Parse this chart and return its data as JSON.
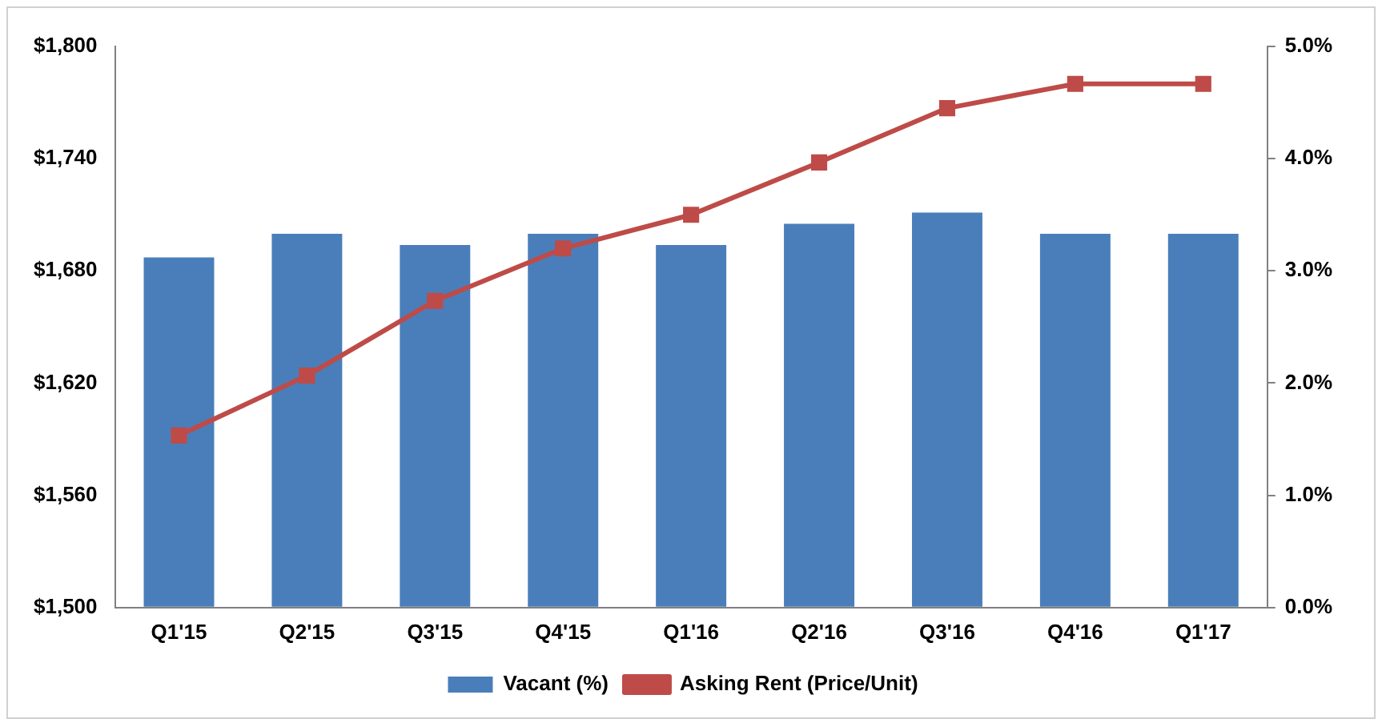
{
  "chart_data": {
    "type": "bar",
    "categories": [
      "Q1'15",
      "Q2'15",
      "Q3'15",
      "Q4'15",
      "Q1'16",
      "Q2'16",
      "Q3'16",
      "Q4'16",
      "Q1'17"
    ],
    "series": [
      {
        "name": "Vacant (%)",
        "axis": "y2",
        "color": "#4a7ebb",
        "values": [
          3.12,
          3.33,
          3.23,
          3.33,
          3.23,
          3.42,
          3.52,
          3.33,
          3.33
        ]
      },
      {
        "name": "Asking Rent (Price/Unit)",
        "type": "line",
        "axis": "y",
        "color": "#be4b48",
        "values": [
          1592,
          1624,
          1664,
          1692,
          1710,
          1738,
          1767,
          1780,
          1780
        ]
      }
    ],
    "ylim": [
      1500,
      1800
    ],
    "yticks": [
      {
        "value": 1500,
        "label": "$1,500"
      },
      {
        "value": 1560,
        "label": "$1,560"
      },
      {
        "value": 1620,
        "label": "$1,620"
      },
      {
        "value": 1680,
        "label": "$1,680"
      },
      {
        "value": 1740,
        "label": "$1,740"
      },
      {
        "value": 1800,
        "label": "$1,800"
      }
    ],
    "y2lim": [
      0,
      5
    ],
    "y2ticks": [
      {
        "value": 0,
        "label": "0.0%"
      },
      {
        "value": 1,
        "label": "1.0%"
      },
      {
        "value": 2,
        "label": "2.0%"
      },
      {
        "value": 3,
        "label": "3.0%"
      },
      {
        "value": 4,
        "label": "4.0%"
      },
      {
        "value": 5,
        "label": "5.0%"
      }
    ],
    "grid": false,
    "legend": "bottom",
    "marker": "square",
    "line_style": "solid"
  }
}
